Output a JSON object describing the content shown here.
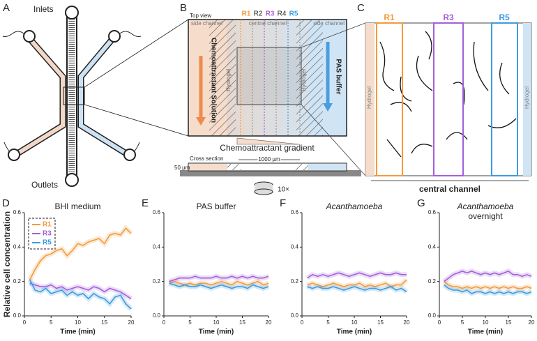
{
  "diagram": {
    "A": {
      "letter": "A",
      "inlets": "Inlets",
      "outlets": "Outlets"
    },
    "B": {
      "letter": "B",
      "top_view": "Top view",
      "regions": [
        "R1",
        "R2",
        "R3",
        "R4",
        "R5"
      ],
      "side_left": "side channel",
      "central": "central channel",
      "side_right": "side channel",
      "chemo_solution": "Chemoattractant Solution",
      "hydrogel_left": "Hydrogel",
      "hydrogel_right": "Hydrogel",
      "pas": "PAS buffer",
      "gradient": "Chemoattractant gradient",
      "cross_section": "Cross section",
      "width": "1000 µm",
      "height": "50 µm",
      "objective": "10×"
    },
    "C": {
      "letter": "C",
      "regions": [
        "R1",
        "R3",
        "R5"
      ],
      "hydrogel_left": "Hydrogel",
      "hydrogel_right": "Hydrogel",
      "central": "central channel"
    }
  },
  "chart_data": [
    {
      "type": "line",
      "panel": "D",
      "title": "BHI medium",
      "ylabel": "Relative cell concentration",
      "xlabel": "Time (min)",
      "legend": "upper left",
      "x": [
        1,
        2,
        3,
        4,
        5,
        6,
        7,
        8,
        9,
        10,
        11,
        12,
        13,
        14,
        15,
        16,
        17,
        18,
        19,
        20
      ],
      "series": [
        {
          "name": "R1",
          "color": "#f39a3c",
          "values": [
            0.21,
            0.27,
            0.32,
            0.35,
            0.36,
            0.38,
            0.39,
            0.35,
            0.38,
            0.42,
            0.41,
            0.43,
            0.44,
            0.45,
            0.42,
            0.47,
            0.48,
            0.47,
            0.51,
            0.48
          ]
        },
        {
          "name": "R3",
          "color": "#a45fdc",
          "values": [
            0.19,
            0.18,
            0.17,
            0.17,
            0.18,
            0.16,
            0.17,
            0.15,
            0.16,
            0.17,
            0.16,
            0.15,
            0.17,
            0.16,
            0.14,
            0.16,
            0.15,
            0.14,
            0.12,
            0.1
          ]
        },
        {
          "name": "R5",
          "color": "#3d9be0",
          "values": [
            0.21,
            0.15,
            0.14,
            0.16,
            0.13,
            0.14,
            0.15,
            0.12,
            0.14,
            0.12,
            0.13,
            0.1,
            0.13,
            0.11,
            0.1,
            0.07,
            0.11,
            0.12,
            0.07,
            0.04
          ]
        }
      ],
      "xlim": [
        0,
        20
      ],
      "xticks": [
        0,
        5,
        10,
        15,
        20
      ],
      "ylim": [
        0,
        0.6
      ],
      "yticks": [
        {
          "value": 0,
          "label": "0.0"
        },
        0.2,
        0.4,
        0.6
      ]
    },
    {
      "type": "line",
      "panel": "E",
      "title": "PAS buffer",
      "xlabel": "Time (min)",
      "x": [
        1,
        2,
        3,
        4,
        5,
        6,
        7,
        8,
        9,
        10,
        11,
        12,
        13,
        14,
        15,
        16,
        17,
        18,
        19,
        20
      ],
      "series": [
        {
          "color": "#f39a3c",
          "values": [
            0.19,
            0.2,
            0.19,
            0.18,
            0.19,
            0.18,
            0.19,
            0.19,
            0.18,
            0.19,
            0.2,
            0.19,
            0.18,
            0.2,
            0.19,
            0.18,
            0.19,
            0.2,
            0.18,
            0.19
          ]
        },
        {
          "color": "#a45fdc",
          "values": [
            0.2,
            0.21,
            0.22,
            0.22,
            0.22,
            0.23,
            0.22,
            0.22,
            0.22,
            0.23,
            0.22,
            0.22,
            0.23,
            0.22,
            0.23,
            0.22,
            0.23,
            0.22,
            0.22,
            0.23
          ]
        },
        {
          "color": "#3d9be0",
          "values": [
            0.19,
            0.18,
            0.17,
            0.18,
            0.17,
            0.17,
            0.18,
            0.17,
            0.16,
            0.17,
            0.18,
            0.17,
            0.16,
            0.17,
            0.17,
            0.16,
            0.18,
            0.17,
            0.16,
            0.17
          ]
        }
      ],
      "xlim": [
        0,
        20
      ],
      "xticks": [
        0,
        5,
        10,
        15,
        20
      ],
      "ylim": [
        0,
        0.6
      ],
      "yticks": [
        {
          "value": 0,
          "label": "0.0"
        },
        0.2,
        0.4,
        0.6
      ]
    },
    {
      "type": "line",
      "panel": "F",
      "title": "Acanthamoeba",
      "xlabel": "Time (min)",
      "x": [
        1,
        2,
        3,
        4,
        5,
        6,
        7,
        8,
        9,
        10,
        11,
        12,
        13,
        14,
        15,
        16,
        17,
        18,
        19,
        20
      ],
      "series": [
        {
          "color": "#f39a3c",
          "values": [
            0.18,
            0.19,
            0.18,
            0.17,
            0.18,
            0.19,
            0.18,
            0.17,
            0.18,
            0.18,
            0.19,
            0.17,
            0.18,
            0.17,
            0.18,
            0.19,
            0.17,
            0.18,
            0.18,
            0.21
          ]
        },
        {
          "color": "#a45fdc",
          "values": [
            0.22,
            0.24,
            0.23,
            0.24,
            0.23,
            0.24,
            0.25,
            0.24,
            0.23,
            0.24,
            0.25,
            0.24,
            0.23,
            0.24,
            0.25,
            0.24,
            0.24,
            0.25,
            0.24,
            0.24
          ]
        },
        {
          "color": "#3d9be0",
          "values": [
            0.17,
            0.16,
            0.17,
            0.16,
            0.16,
            0.17,
            0.16,
            0.15,
            0.16,
            0.17,
            0.16,
            0.15,
            0.16,
            0.16,
            0.15,
            0.16,
            0.17,
            0.15,
            0.16,
            0.14
          ]
        }
      ],
      "xlim": [
        0,
        20
      ],
      "xticks": [
        0,
        5,
        10,
        15,
        20
      ],
      "ylim": [
        0,
        0.6
      ],
      "yticks": [
        {
          "value": 0,
          "label": "0.0"
        },
        0.2,
        0.4,
        0.6
      ]
    },
    {
      "type": "line",
      "panel": "G",
      "title": "Acanthamoeba",
      "subtitle": "overnight",
      "xlabel": "Time (min)",
      "x": [
        1,
        2,
        3,
        4,
        5,
        6,
        7,
        8,
        9,
        10,
        11,
        12,
        13,
        14,
        15,
        16,
        17,
        18,
        19,
        20
      ],
      "series": [
        {
          "color": "#f39a3c",
          "values": [
            0.2,
            0.18,
            0.17,
            0.17,
            0.16,
            0.17,
            0.16,
            0.17,
            0.16,
            0.17,
            0.16,
            0.17,
            0.16,
            0.17,
            0.16,
            0.17,
            0.16,
            0.16,
            0.17,
            0.16
          ]
        },
        {
          "color": "#a45fdc",
          "values": [
            0.2,
            0.22,
            0.24,
            0.25,
            0.26,
            0.25,
            0.26,
            0.25,
            0.24,
            0.25,
            0.24,
            0.25,
            0.24,
            0.25,
            0.26,
            0.24,
            0.24,
            0.23,
            0.24,
            0.23
          ]
        },
        {
          "color": "#3d9be0",
          "values": [
            0.18,
            0.16,
            0.15,
            0.15,
            0.14,
            0.15,
            0.13,
            0.14,
            0.14,
            0.13,
            0.14,
            0.13,
            0.14,
            0.13,
            0.14,
            0.13,
            0.14,
            0.14,
            0.13,
            0.14
          ]
        }
      ],
      "xlim": [
        0,
        20
      ],
      "xticks": [
        0,
        5,
        10,
        15,
        20
      ],
      "ylim": [
        0,
        0.6
      ],
      "yticks": [
        {
          "value": 0,
          "label": "0.0"
        },
        0.2,
        0.4,
        0.6
      ]
    }
  ]
}
